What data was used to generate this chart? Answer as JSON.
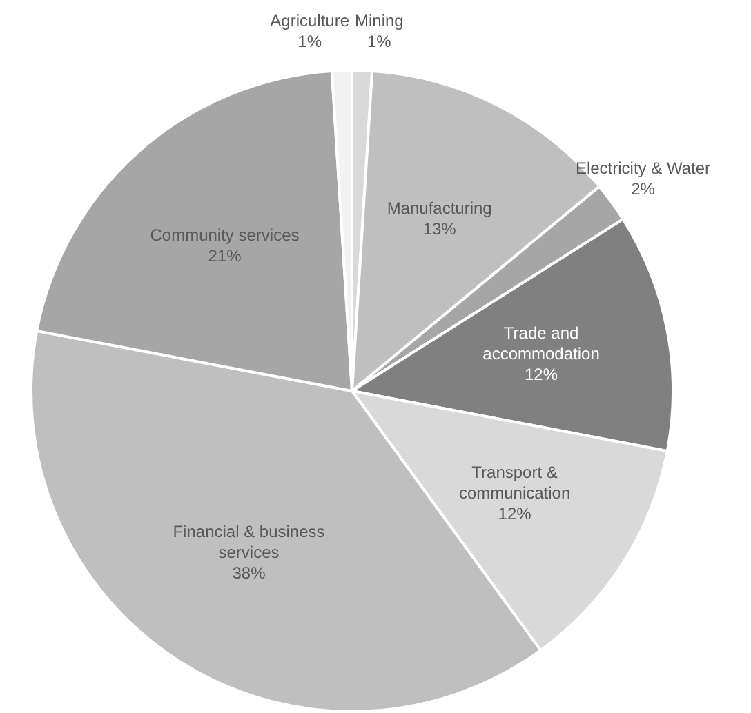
{
  "chart_data": {
    "type": "pie",
    "categories": [
      "Mining",
      "Manufacturing",
      "Electricity & Water",
      "Trade and accommodation",
      "Transport & communication",
      "Financial & business services",
      "Community services",
      "Agriculture"
    ],
    "values": [
      1,
      13,
      2,
      12,
      12,
      38,
      21,
      1
    ],
    "value_labels": [
      "1%",
      "13%",
      "2%",
      "12%",
      "12%",
      "38%",
      "21%",
      "1%"
    ],
    "colors": [
      "#d9d9d9",
      "#bfbfbf",
      "#a6a6a6",
      "#808080",
      "#d9d9d9",
      "#bfbfbf",
      "#a6a6a6",
      "#f2f2f2"
    ],
    "legend": false
  }
}
